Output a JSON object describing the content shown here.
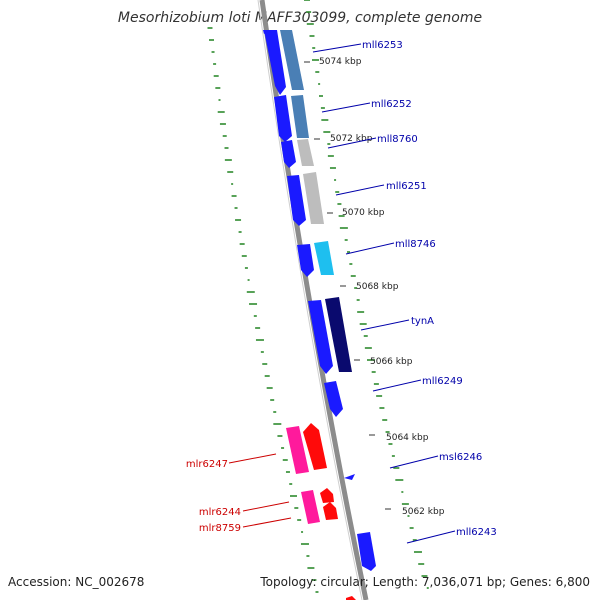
{
  "title": "Mesorhizobium loti MAFF303099, complete genome",
  "footer": {
    "accession": "Accession: NC_002678",
    "summary": "Topology: circular; Length: 7,036,071 bp; Genes: 6,800"
  },
  "colors": {
    "backbone": "#8c8c8c",
    "gc_ticks": "#2e8b2e",
    "forward_label": "#cc0000",
    "reverse_label": "#0000aa"
  },
  "ticks": [
    {
      "label": "5074 kbp"
    },
    {
      "label": "5072 kbp"
    },
    {
      "label": "5070 kbp"
    },
    {
      "label": "5068 kbp"
    },
    {
      "label": "5066 kbp"
    },
    {
      "label": "5064 kbp"
    },
    {
      "label": "5062 kbp"
    }
  ],
  "genes": [
    {
      "name": "mll6253",
      "strand": "reverse"
    },
    {
      "name": "mll6252",
      "strand": "reverse"
    },
    {
      "name": "mll8760",
      "strand": "reverse"
    },
    {
      "name": "mll6251",
      "strand": "reverse"
    },
    {
      "name": "mll8746",
      "strand": "reverse"
    },
    {
      "name": "tynA",
      "strand": "reverse"
    },
    {
      "name": "mll6249",
      "strand": "reverse"
    },
    {
      "name": "msl6246",
      "strand": "reverse"
    },
    {
      "name": "mll6243",
      "strand": "reverse"
    },
    {
      "name": "mlr6247",
      "strand": "forward"
    },
    {
      "name": "mlr6244",
      "strand": "forward"
    },
    {
      "name": "mlr8759",
      "strand": "forward"
    }
  ]
}
